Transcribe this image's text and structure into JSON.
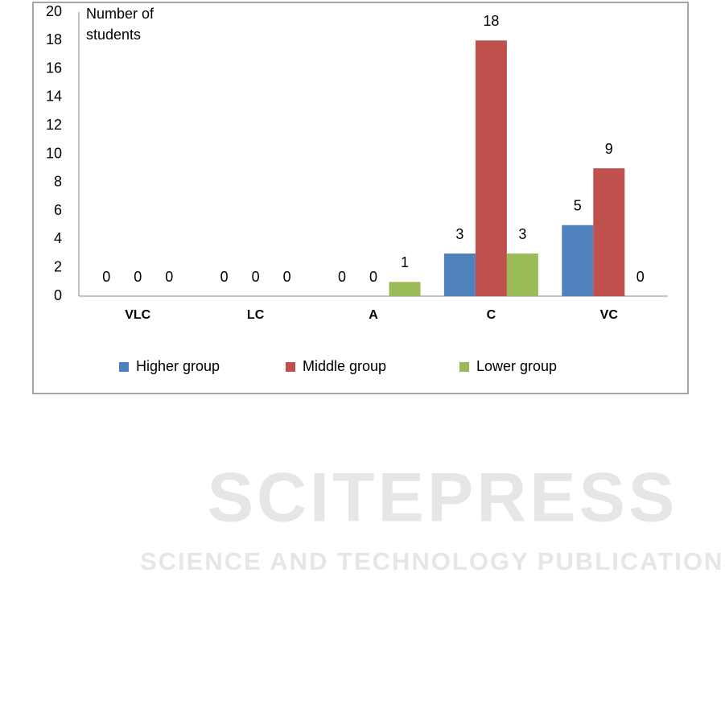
{
  "chart_data": {
    "type": "bar",
    "ylabel": [
      "Number of",
      "students"
    ],
    "categories": [
      "VLC",
      "LC",
      "A",
      "C",
      "VC"
    ],
    "series": [
      {
        "name": "Higher group",
        "color": "#4f81bd",
        "values": [
          0,
          0,
          0,
          3,
          5
        ]
      },
      {
        "name": "Middle group",
        "color": "#c0504d",
        "values": [
          0,
          0,
          0,
          18,
          9
        ]
      },
      {
        "name": "Lower group",
        "color": "#9bbb59",
        "values": [
          0,
          0,
          1,
          3,
          0
        ]
      }
    ],
    "ylim": [
      0,
      20
    ],
    "yticks": [
      0,
      2,
      4,
      6,
      8,
      10,
      12,
      14,
      16,
      18,
      20
    ],
    "grid": false
  },
  "watermark": {
    "title": "SCITEPRESS",
    "subtitle": "SCIENCE AND TECHNOLOGY PUBLICATIONS"
  }
}
